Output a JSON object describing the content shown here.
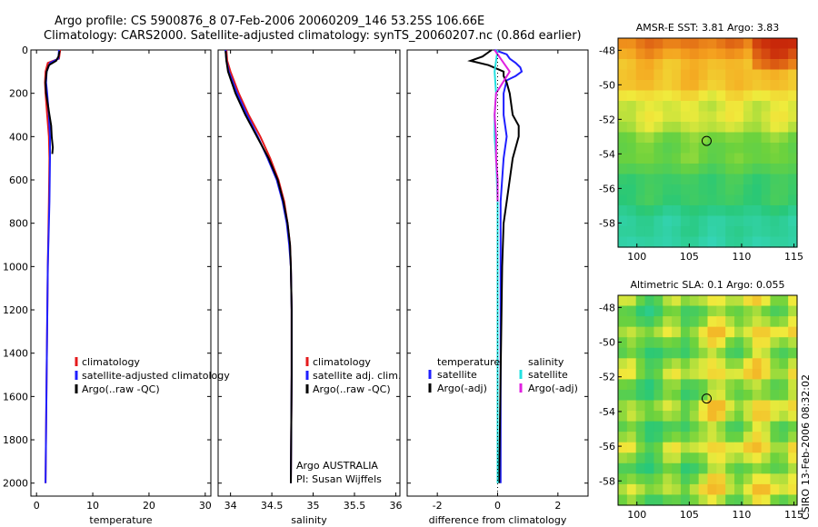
{
  "title": {
    "line1": "Argo profile: CS 5900876_8 07-Feb-2006 20060209_146 53.25S 106.66E",
    "line2": "Climatology: CARS2000. Satellite-adjusted climatology: synTS_20060207.nc (0.86d earlier)"
  },
  "side_label": "CSIRO 13-Feb-2006 08:32:02",
  "colors": {
    "red": "#e41a1c",
    "blue": "#1f1fff",
    "black": "#000000",
    "cyan": "#22e0e0",
    "magenta": "#e020e0"
  },
  "chart_data": [
    {
      "id": "temperature",
      "type": "line",
      "xlabel": "temperature",
      "xlim": [
        -1,
        31
      ],
      "ylim": [
        0,
        2060
      ],
      "y_inverted": true,
      "xticks": [
        0,
        10,
        20,
        30
      ],
      "yticks": [
        0,
        200,
        400,
        600,
        800,
        1000,
        1200,
        1400,
        1600,
        1800,
        2000
      ],
      "series": [
        {
          "name": "climatology",
          "color": "red",
          "depth": [
            0,
            40,
            60,
            100,
            150,
            200,
            300,
            400,
            500,
            700,
            1000,
            1500,
            2000
          ],
          "values": [
            4.2,
            4.0,
            2.0,
            1.6,
            1.5,
            1.6,
            1.9,
            2.2,
            2.3,
            2.2,
            2.0,
            1.8,
            1.6
          ]
        },
        {
          "name": "satellite-adjusted climatology",
          "color": "blue",
          "depth": [
            0,
            40,
            60,
            100,
            150,
            200,
            300,
            400,
            500,
            700,
            1000,
            1500,
            2000
          ],
          "values": [
            4.0,
            3.9,
            2.4,
            1.8,
            1.7,
            1.9,
            2.2,
            2.4,
            2.4,
            2.3,
            2.0,
            1.8,
            1.6
          ]
        },
        {
          "name": "Argo(..raw -QC)",
          "color": "black",
          "depth": [
            5,
            30,
            50,
            70,
            100,
            150,
            200,
            250,
            300,
            350,
            400,
            450,
            480
          ],
          "values": [
            4.1,
            3.9,
            3.5,
            2.2,
            1.8,
            1.6,
            1.7,
            2.0,
            2.3,
            2.6,
            2.7,
            2.9,
            2.8
          ]
        }
      ],
      "legend": [
        "climatology",
        "satellite-adjusted climatology",
        "Argo(..raw -QC)"
      ]
    },
    {
      "id": "salinity",
      "type": "line",
      "xlabel": "salinity",
      "xlim": [
        33.85,
        36.05
      ],
      "ylim": [
        0,
        2060
      ],
      "y_inverted": true,
      "xticks": [
        34,
        34.5,
        35,
        35.5,
        36
      ],
      "xticklabels": [
        "34",
        "34.5",
        "35",
        "35.5",
        "36"
      ],
      "series": [
        {
          "name": "climatology",
          "color": "red",
          "depth": [
            0,
            50,
            100,
            200,
            300,
            400,
            500,
            600,
            700,
            800,
            900,
            1000,
            1200,
            1500,
            2000
          ],
          "values": [
            33.95,
            33.96,
            34.0,
            34.1,
            34.22,
            34.36,
            34.48,
            34.58,
            34.65,
            34.69,
            34.72,
            34.73,
            34.74,
            34.74,
            34.73
          ]
        },
        {
          "name": "satellite adj. clim.",
          "color": "blue",
          "depth": [
            0,
            50,
            100,
            200,
            300,
            400,
            500,
            600,
            700,
            800,
            900,
            1000,
            1200,
            1500,
            2000
          ],
          "values": [
            33.94,
            33.95,
            33.98,
            34.08,
            34.2,
            34.33,
            34.45,
            34.56,
            34.63,
            34.68,
            34.71,
            34.73,
            34.74,
            34.74,
            34.73
          ]
        },
        {
          "name": "Argo(..raw -QC)",
          "color": "black",
          "depth": [
            5,
            50,
            100,
            200,
            300,
            400,
            500,
            600,
            700,
            800,
            900,
            1000,
            1200,
            1500,
            2000
          ],
          "values": [
            33.94,
            33.95,
            33.97,
            34.06,
            34.18,
            34.32,
            34.46,
            34.57,
            34.64,
            34.69,
            34.72,
            34.73,
            34.74,
            34.74,
            34.73
          ]
        }
      ],
      "legend": [
        "climatology",
        "satellite adj. clim.",
        "Argo(..raw -QC)"
      ],
      "annotation": [
        "Argo AUSTRALIA",
        "PI: Susan Wijffels"
      ]
    },
    {
      "id": "difference",
      "type": "line",
      "xlabel": "difference from climatology",
      "xlim": [
        -3,
        3
      ],
      "ylim": [
        0,
        2060
      ],
      "y_inverted": true,
      "xticks": [
        -2,
        0,
        2
      ],
      "series": [
        {
          "name": "temperature satellite",
          "color": "blue",
          "depth": [
            0,
            20,
            40,
            60,
            80,
            100,
            120,
            140,
            200,
            300,
            400,
            500,
            700,
            1000,
            1500,
            2000
          ],
          "values": [
            -0.1,
            0.3,
            0.4,
            0.6,
            0.75,
            0.8,
            0.6,
            0.3,
            0.2,
            0.2,
            0.3,
            0.2,
            0.1,
            0.1,
            0.1,
            0.1
          ]
        },
        {
          "name": "temperature Argo(-adj)",
          "color": "black",
          "depth": [
            0,
            30,
            50,
            70,
            100,
            120,
            150,
            200,
            300,
            350,
            400,
            500,
            600,
            700,
            800,
            1000,
            1500,
            2000
          ],
          "values": [
            -0.2,
            -0.5,
            -0.9,
            -0.3,
            0.2,
            0.2,
            0.3,
            0.4,
            0.5,
            0.7,
            0.7,
            0.5,
            0.4,
            0.3,
            0.2,
            0.15,
            0.1,
            0.05
          ]
        },
        {
          "name": "salinity satellite",
          "color": "cyan",
          "depth": [
            0,
            50,
            100,
            200,
            300,
            400,
            500,
            700,
            1000,
            1500,
            2000
          ],
          "values": [
            0.0,
            -0.05,
            -0.1,
            -0.05,
            -0.1,
            -0.1,
            -0.05,
            0.0,
            0.0,
            0.0,
            0.0
          ]
        },
        {
          "name": "salinity Argo(-adj)",
          "color": "magenta",
          "depth": [
            0,
            50,
            100,
            200,
            300,
            400,
            500,
            600,
            700
          ],
          "values": [
            -0.1,
            0.15,
            0.4,
            -0.05,
            -0.1,
            -0.05,
            -0.05,
            0.0,
            0.0
          ]
        }
      ],
      "legend_columns": [
        {
          "header": "temperature",
          "items": [
            {
              "name": "satellite",
              "color": "blue"
            },
            {
              "name": "Argo(-adj)",
              "color": "black"
            }
          ]
        },
        {
          "header": "salinity",
          "items": [
            {
              "name": "satellite",
              "color": "cyan"
            },
            {
              "name": "Argo(-adj)",
              "color": "magenta"
            }
          ]
        }
      ]
    },
    {
      "id": "sst_map",
      "type": "heatmap",
      "title": "AMSR-E SST: 3.81 Argo: 3.83",
      "xlim": [
        98.2,
        115.3
      ],
      "ylim": [
        -59.4,
        -47.3
      ],
      "xticks": [
        100,
        105,
        110,
        115
      ],
      "yticks": [
        -48,
        -50,
        -52,
        -54,
        -56,
        -58
      ],
      "marker": {
        "lon": 106.66,
        "lat": -53.25
      }
    },
    {
      "id": "sla_map",
      "type": "heatmap",
      "title": "Altimetric SLA: 0.1 Argo: 0.055",
      "xlim": [
        98.2,
        115.3
      ],
      "ylim": [
        -59.4,
        -47.3
      ],
      "xticks": [
        100,
        105,
        110,
        115
      ],
      "yticks": [
        -48,
        -50,
        -52,
        -54,
        -56,
        -58
      ],
      "marker": {
        "lon": 106.66,
        "lat": -53.25
      }
    }
  ]
}
